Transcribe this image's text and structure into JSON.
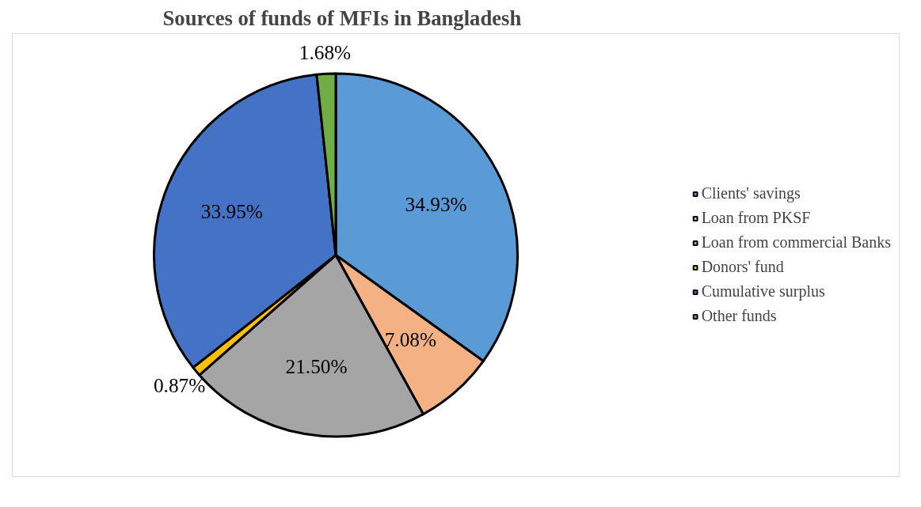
{
  "chart_data": {
    "type": "pie",
    "title": "Sources of funds of MFIs in Bangladesh",
    "categories": [
      "Clients' savings",
      "Loan from PKSF",
      "Loan from commercial Banks",
      "Donors' fund",
      "Cumulative surplus",
      "Other funds"
    ],
    "values": [
      34.93,
      7.08,
      21.5,
      0.87,
      33.95,
      1.68
    ],
    "colors": [
      "#5b9bd5",
      "#f4b183",
      "#a5a5a5",
      "#ffc000",
      "#4472c4",
      "#70ad47"
    ],
    "value_labels": [
      "34.93%",
      "7.08%",
      "21.50%",
      "0.87%",
      "33.95%",
      "1.68%"
    ],
    "legend": "right"
  }
}
